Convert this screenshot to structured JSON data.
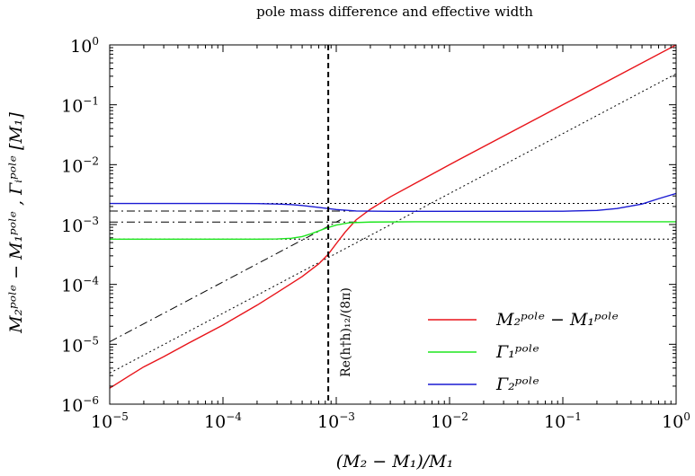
{
  "chart_data": {
    "type": "line",
    "title": "pole mass difference and effective width",
    "xlabel": "(M₂ − M₁)/M₁",
    "ylabel": "M₂ᵖᵒˡᵉ − M₁ᵖᵒˡᵉ , Γᵢᵖᵒˡᵉ  [M₁]",
    "xscale": "log",
    "yscale": "log",
    "xlim": [
      1e-05,
      1
    ],
    "ylim": [
      1e-06,
      1
    ],
    "x_ticks": [
      {
        "base": "10",
        "exp": "−5",
        "value": 1e-05
      },
      {
        "base": "10",
        "exp": "−4",
        "value": 0.0001
      },
      {
        "base": "10",
        "exp": "−3",
        "value": 0.001
      },
      {
        "base": "10",
        "exp": "−2",
        "value": 0.01
      },
      {
        "base": "10",
        "exp": "−1",
        "value": 0.1
      },
      {
        "base": "10",
        "exp": "0",
        "value": 1
      }
    ],
    "y_ticks": [
      {
        "base": "10",
        "exp": "−6",
        "value": 1e-06
      },
      {
        "base": "10",
        "exp": "−5",
        "value": 1e-05
      },
      {
        "base": "10",
        "exp": "−4",
        "value": 0.0001
      },
      {
        "base": "10",
        "exp": "−3",
        "value": 0.001
      },
      {
        "base": "10",
        "exp": "−2",
        "value": 0.01
      },
      {
        "base": "10",
        "exp": "−1",
        "value": 0.1
      },
      {
        "base": "10",
        "exp": "0",
        "value": 1
      }
    ],
    "series": [
      {
        "name": "M₂ᵖᵒˡᵉ − M₁ᵖᵒˡᵉ",
        "color": "#e8141a",
        "style": "solid",
        "x": [
          1e-05,
          1.5e-05,
          2e-05,
          3e-05,
          5e-05,
          0.0001,
          0.0002,
          0.0003,
          0.0005,
          0.0007,
          0.00085,
          0.001,
          0.0012,
          0.0015,
          0.002,
          0.003,
          0.005,
          0.01,
          0.03,
          0.1,
          0.3,
          1
        ],
        "y": [
          1.85e-06,
          3e-06,
          4.2e-06,
          6.2e-06,
          1.05e-05,
          2.1e-05,
          4.5e-05,
          7.3e-05,
          0.000135,
          0.00022,
          0.00032,
          0.00048,
          0.00075,
          0.0012,
          0.0018,
          0.0029,
          0.0049,
          0.01,
          0.03,
          0.1,
          0.3,
          1
        ]
      },
      {
        "name": "Γ₁ᵖᵒˡᵉ",
        "color": "#1ee61e",
        "style": "solid",
        "x": [
          1e-05,
          0.0001,
          0.0002,
          0.0003,
          0.0004,
          0.0005,
          0.0006,
          0.0008,
          0.001,
          0.0013,
          0.002,
          0.005,
          0.01,
          0.1,
          1
        ],
        "y": [
          0.00057,
          0.00057,
          0.00057,
          0.000575,
          0.00059,
          0.00063,
          0.0007,
          0.00086,
          0.00098,
          0.00107,
          0.0011,
          0.00111,
          0.00111,
          0.00111,
          0.00111
        ]
      },
      {
        "name": "Γ₂ᵖᵒˡᵉ",
        "color": "#1a1ad2",
        "style": "solid",
        "x": [
          1e-05,
          0.0001,
          0.0002,
          0.0003,
          0.0004,
          0.0005,
          0.0007,
          0.001,
          0.0015,
          0.003,
          0.01,
          0.03,
          0.1,
          0.2,
          0.3,
          0.5,
          0.7,
          1
        ],
        "y": [
          0.00225,
          0.00225,
          0.00224,
          0.0022,
          0.00215,
          0.00208,
          0.00193,
          0.00178,
          0.00168,
          0.00166,
          0.00166,
          0.00166,
          0.00167,
          0.00172,
          0.00185,
          0.0022,
          0.0027,
          0.0033
        ]
      },
      {
        "name": "",
        "color": "#000000",
        "style": "dotted",
        "x": [
          1e-05,
          1
        ],
        "y": [
          3.3e-06,
          0.33
        ]
      },
      {
        "name": "",
        "color": "#000000",
        "style": "dashdot",
        "x": [
          1e-05,
          0.0011
        ],
        "y": [
          1.1e-05,
          0.00121
        ]
      },
      {
        "name": "",
        "color": "#000000",
        "style": "dotted",
        "x": [
          1e-05,
          1
        ],
        "y": [
          0.00057,
          0.00057
        ]
      },
      {
        "name": "",
        "color": "#000000",
        "style": "dotted",
        "x": [
          1e-05,
          1
        ],
        "y": [
          0.00225,
          0.00225
        ]
      },
      {
        "name": "",
        "color": "#000000",
        "style": "dashdot",
        "x": [
          1e-05,
          0.0016
        ],
        "y": [
          0.0011,
          0.0011
        ]
      },
      {
        "name": "",
        "color": "#000000",
        "style": "dashdot",
        "x": [
          1e-05,
          0.0016
        ],
        "y": [
          0.00168,
          0.00168
        ]
      }
    ],
    "vline": {
      "x": 0.00085,
      "color": "#000000",
      "style": "dashed",
      "label": "Re(h†h)₁₂/(8π)"
    },
    "legend": {
      "position": "bottom-right",
      "entries": [
        {
          "label": "M₂ᵖᵒˡᵉ − M₁ᵖᵒˡᵉ",
          "color": "#e8141a"
        },
        {
          "label": "Γ₁ᵖᵒˡᵉ",
          "color": "#1ee61e"
        },
        {
          "label": "Γ₂ᵖᵒˡᵉ",
          "color": "#1a1ad2"
        }
      ]
    },
    "grid": false
  }
}
